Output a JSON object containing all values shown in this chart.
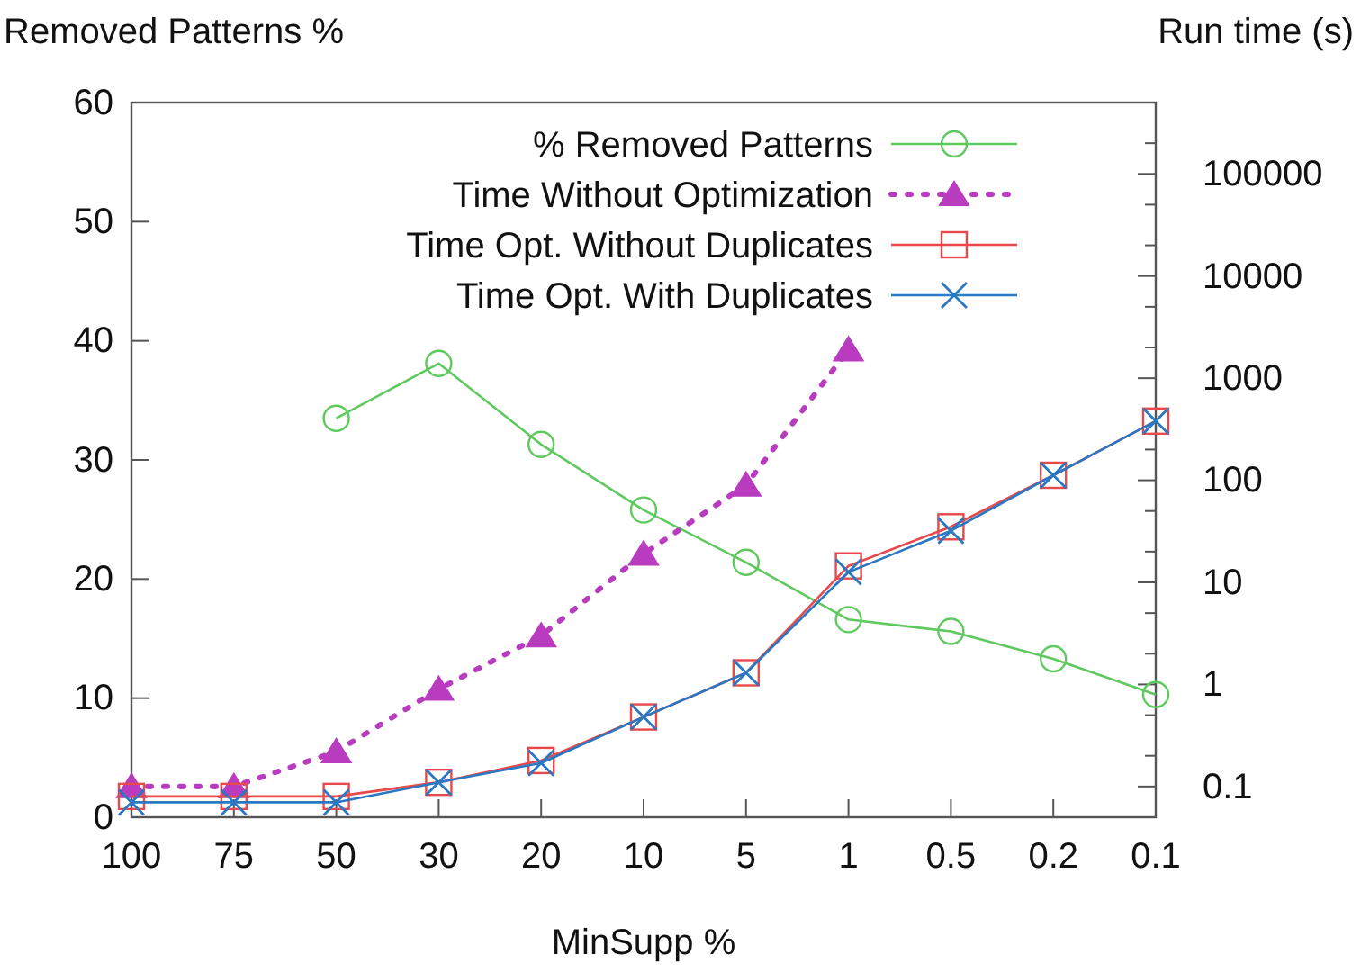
{
  "chart_data": {
    "type": "line",
    "categories": [
      "100",
      "75",
      "50",
      "30",
      "20",
      "10",
      "5",
      "1",
      "0.5",
      "0.2",
      "0.1"
    ],
    "xlabel": "MinSupp %",
    "ylabel": "Removed Patterns %",
    "y2label": "Run time (s)",
    "ylim": [
      0,
      60
    ],
    "yticks": [
      0,
      10,
      20,
      30,
      40,
      50,
      60
    ],
    "y2lim": [
      0.05,
      500000
    ],
    "log": "y2",
    "y2ticks": [
      {
        "value": 0.1,
        "label": "0.1"
      },
      {
        "value": 0.2,
        "label": null
      },
      {
        "value": 0.5,
        "label": null
      },
      {
        "value": 1,
        "label": "1"
      },
      {
        "value": 2,
        "label": null
      },
      {
        "value": 5,
        "label": null
      },
      {
        "value": 10,
        "label": "10"
      },
      {
        "value": 20,
        "label": null
      },
      {
        "value": 50,
        "label": null
      },
      {
        "value": 100,
        "label": "100"
      },
      {
        "value": 200,
        "label": null
      },
      {
        "value": 500,
        "label": null
      },
      {
        "value": 1000,
        "label": "1000"
      },
      {
        "value": 2000,
        "label": null
      },
      {
        "value": 5000,
        "label": null
      },
      {
        "value": 10000,
        "label": "10000"
      },
      {
        "value": 20000,
        "label": null
      },
      {
        "value": 50000,
        "label": null
      },
      {
        "value": 100000,
        "label": "100000"
      },
      {
        "value": 200000,
        "label": null
      }
    ],
    "grid": false,
    "legend": "top right",
    "series": [
      {
        "name": "% Removed Patterns",
        "color": "#5ec95e",
        "marker": "circle",
        "line_style": "solid",
        "values": [
          null,
          null,
          33.5,
          38.1,
          31.3,
          25.8,
          21.4,
          16.6,
          15.6,
          13.3,
          10.3
        ]
      },
      {
        "name": "Time Without Optimization",
        "color": "#b93cc0",
        "marker": "triangle",
        "line_style": "dotted",
        "axis": "y2",
        "values": [
          0.1,
          0.1,
          0.22,
          0.9,
          3,
          19,
          90,
          1900,
          null,
          null,
          null
        ]
      },
      {
        "name": "Time Opt. Without Duplicates",
        "color": "#e8494a",
        "marker": "square",
        "line_style": "solid",
        "axis": "y2",
        "values": [
          0.08,
          0.08,
          0.08,
          0.11,
          0.18,
          0.48,
          1.3,
          14.5,
          35,
          112,
          380
        ]
      },
      {
        "name": "Time Opt. With Duplicates",
        "color": "#2a78c2",
        "marker": "cross",
        "line_style": "solid",
        "axis": "y2",
        "values": [
          0.07,
          0.07,
          0.07,
          0.11,
          0.17,
          0.48,
          1.3,
          12.6,
          32,
          112,
          380
        ]
      }
    ]
  }
}
